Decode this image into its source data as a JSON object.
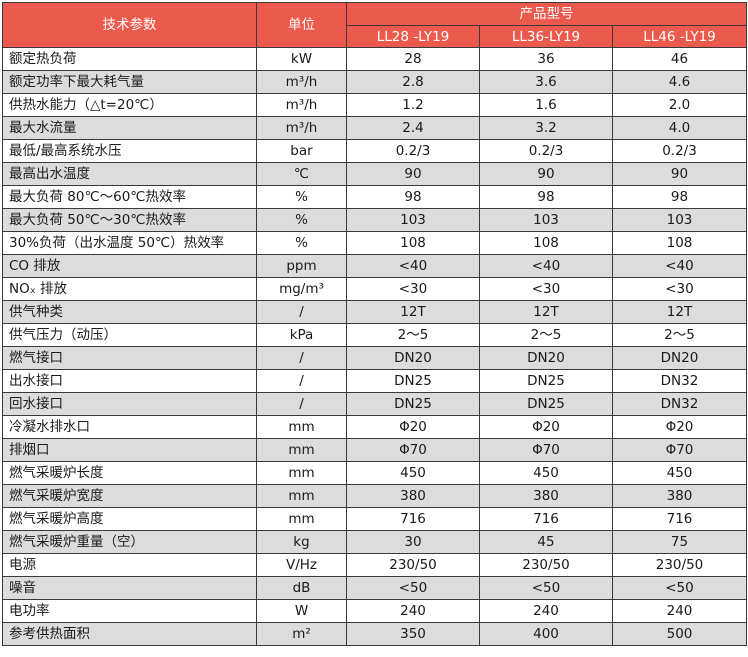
{
  "header": {
    "param_label": "技术参数",
    "unit_label": "单位",
    "group_label": "产品型号",
    "models": [
      "LL28 -LY19",
      "LL36-LY19",
      "LL46 -LY19"
    ]
  },
  "rows": [
    {
      "param": "额定热负荷",
      "unit": "kW",
      "values": [
        "28",
        "36",
        "46"
      ]
    },
    {
      "param": "额定功率下最大耗气量",
      "unit": "m³/h",
      "values": [
        "2.8",
        "3.6",
        "4.6"
      ]
    },
    {
      "param": "供热水能力（△t=20℃）",
      "unit": "m³/h",
      "values": [
        "1.2",
        "1.6",
        "2.0"
      ]
    },
    {
      "param": "最大水流量",
      "unit": "m³/h",
      "values": [
        "2.4",
        "3.2",
        "4.0"
      ]
    },
    {
      "param": "最低/最高系统水压",
      "unit": "bar",
      "values": [
        "0.2/3",
        "0.2/3",
        "0.2/3"
      ]
    },
    {
      "param": "最高出水温度",
      "unit": "℃",
      "values": [
        "90",
        "90",
        "90"
      ]
    },
    {
      "param": "最大负荷 80℃～60℃热效率",
      "unit": "%",
      "values": [
        "98",
        "98",
        "98"
      ]
    },
    {
      "param": "最大负荷 50℃～30℃热效率",
      "unit": "%",
      "values": [
        "103",
        "103",
        "103"
      ]
    },
    {
      "param": "30%负荷（出水温度 50℃）热效率",
      "unit": "%",
      "values": [
        "108",
        "108",
        "108"
      ]
    },
    {
      "param": "CO 排放",
      "unit": "ppm",
      "values": [
        "<40",
        "<40",
        "<40"
      ]
    },
    {
      "param": "NOₓ 排放",
      "unit": "mg/m³",
      "values": [
        "<30",
        "<30",
        "<30"
      ]
    },
    {
      "param": "供气种类",
      "unit": "/",
      "values": [
        "12T",
        "12T",
        "12T"
      ]
    },
    {
      "param": "供气压力（动压）",
      "unit": "kPa",
      "values": [
        "2～5",
        "2～5",
        "2～5"
      ]
    },
    {
      "param": "燃气接口",
      "unit": "/",
      "values": [
        "DN20",
        "DN20",
        "DN20"
      ]
    },
    {
      "param": "出水接口",
      "unit": "/",
      "values": [
        "DN25",
        "DN25",
        "DN32"
      ]
    },
    {
      "param": "回水接口",
      "unit": "/",
      "values": [
        "DN25",
        "DN25",
        "DN32"
      ]
    },
    {
      "param": "冷凝水排水口",
      "unit": "mm",
      "values": [
        "Φ20",
        "Φ20",
        "Φ20"
      ]
    },
    {
      "param": "排烟口",
      "unit": "mm",
      "values": [
        "Φ70",
        "Φ70",
        "Φ70"
      ]
    },
    {
      "param": "燃气采暖炉长度",
      "unit": "mm",
      "values": [
        "450",
        "450",
        "450"
      ]
    },
    {
      "param": "燃气采暖炉宽度",
      "unit": "mm",
      "values": [
        "380",
        "380",
        "380"
      ]
    },
    {
      "param": "燃气采暖炉高度",
      "unit": "mm",
      "values": [
        "716",
        "716",
        "716"
      ]
    },
    {
      "param": "燃气采暖炉重量（空）",
      "unit": "kg",
      "values": [
        "30",
        "45",
        "75"
      ]
    },
    {
      "param": "电源",
      "unit": "V/Hz",
      "values": [
        "230/50",
        "230/50",
        "230/50"
      ]
    },
    {
      "param": "噪音",
      "unit": "dB",
      "values": [
        "<50",
        "<50",
        "<50"
      ]
    },
    {
      "param": "电功率",
      "unit": "W",
      "values": [
        "240",
        "240",
        "240"
      ]
    },
    {
      "param": "参考供热面积",
      "unit": "m²",
      "values": [
        "350",
        "400",
        "500"
      ]
    }
  ]
}
